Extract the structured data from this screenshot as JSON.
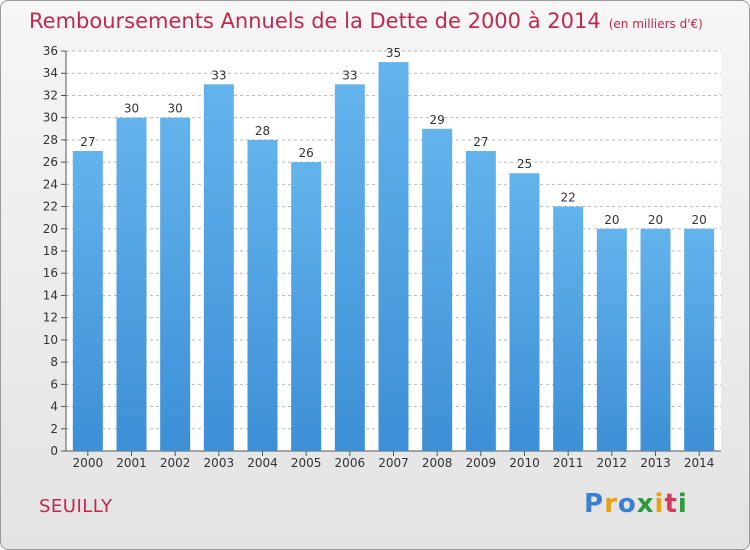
{
  "title": "Remboursements Annuels de la Dette de 2000 à 2014",
  "unit_label": "(en milliers d'€)",
  "commune": "SEUILLY",
  "logo": {
    "letters": [
      "P",
      "r",
      "o",
      "x",
      "i",
      "t",
      "i"
    ],
    "colors": [
      "#3a7fd0",
      "#e8a21a",
      "#3a7fd0",
      "#2a9a3a",
      "#e8a21a",
      "#d23b5c",
      "#2a9a3a"
    ]
  },
  "colors": {
    "bar": "#3d8fd6",
    "bar_highlight": "#63b3ec",
    "title": "#c0284e",
    "grid": "#b9b9b9"
  },
  "chart_data": {
    "type": "bar",
    "categories": [
      "2000",
      "2001",
      "2002",
      "2003",
      "2004",
      "2005",
      "2006",
      "2007",
      "2008",
      "2009",
      "2010",
      "2011",
      "2012",
      "2013",
      "2014"
    ],
    "values": [
      27,
      30,
      30,
      33,
      28,
      26,
      33,
      35,
      29,
      27,
      25,
      22,
      20,
      20,
      20
    ],
    "title": "Remboursements Annuels de la Dette de 2000 à 2014",
    "xlabel": "",
    "ylabel": "",
    "ylim": [
      0,
      36
    ],
    "yticks": [
      0,
      2,
      4,
      6,
      8,
      10,
      12,
      14,
      16,
      18,
      20,
      22,
      24,
      26,
      28,
      30,
      32,
      34,
      36
    ],
    "grid": true,
    "data_labels": true
  }
}
